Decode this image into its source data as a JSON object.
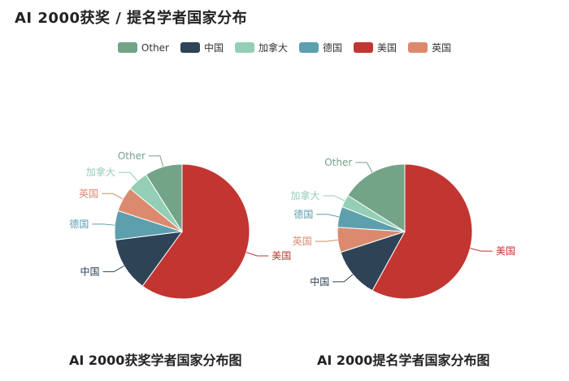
{
  "page_title": "AI 2000获奖 / 提名学者国家分布",
  "legend": [
    {
      "name": "Other",
      "color": "#73a488"
    },
    {
      "name": "中国",
      "color": "#2e4356"
    },
    {
      "name": "加拿大",
      "color": "#94cfb5"
    },
    {
      "name": "德国",
      "color": "#5e9fae"
    },
    {
      "name": "美国",
      "color": "#c23531"
    },
    {
      "name": "英国",
      "color": "#dc8a6e"
    }
  ],
  "chart_data": [
    {
      "type": "pie",
      "title": "AI 2000获奖学者国家分布图",
      "slices": [
        {
          "name": "美国",
          "value": 60
        },
        {
          "name": "中国",
          "value": 13
        },
        {
          "name": "德国",
          "value": 7
        },
        {
          "name": "英国",
          "value": 6
        },
        {
          "name": "加拿大",
          "value": 5
        },
        {
          "name": "Other",
          "value": 9
        }
      ]
    },
    {
      "type": "pie",
      "title": "AI 2000提名学者国家分布图",
      "slices": [
        {
          "name": "美国",
          "value": 58
        },
        {
          "name": "中国",
          "value": 12
        },
        {
          "name": "英国",
          "value": 6
        },
        {
          "name": "德国",
          "value": 5
        },
        {
          "name": "加拿大",
          "value": 3
        },
        {
          "name": "Other",
          "value": 16
        }
      ]
    }
  ]
}
